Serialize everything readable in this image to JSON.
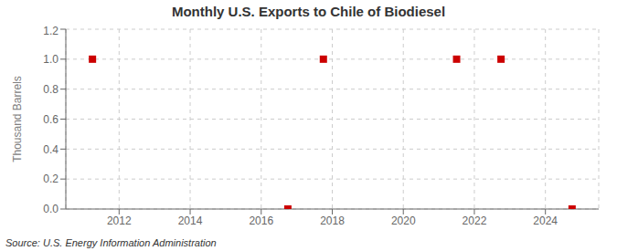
{
  "chart_data": {
    "type": "scatter",
    "title": "Monthly U.S. Exports to Chile of Biodiesel",
    "ylabel": "Thousand Barrels",
    "annotations": [
      "Source: U.S. Energy Information Administration"
    ],
    "x": [
      2011.25,
      2016.75,
      2017.75,
      2021.5,
      2022.75,
      2024.75
    ],
    "values": [
      1.0,
      0.0,
      1.0,
      1.0,
      1.0,
      0.0
    ],
    "color": "#cc0000",
    "marker": "square",
    "xlim": [
      2010.5,
      2025.5
    ],
    "ylim": [
      0.0,
      1.2
    ],
    "xticks": [
      2012,
      2014,
      2016,
      2018,
      2020,
      2022,
      2024
    ],
    "yticks": [
      {
        "value": 0,
        "label": "0.0"
      },
      0.2,
      0.4,
      0.6,
      0.8,
      {
        "value": 1,
        "label": "1.0"
      },
      1.2
    ],
    "grid": true
  }
}
